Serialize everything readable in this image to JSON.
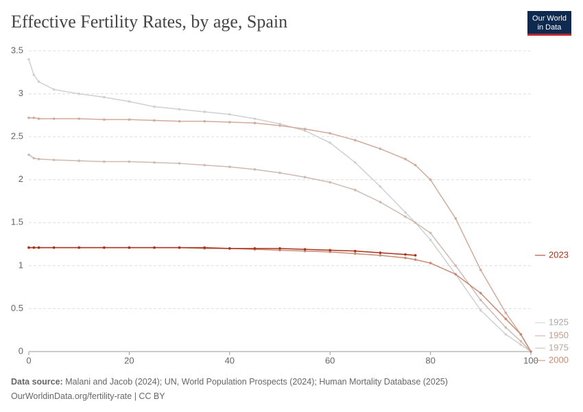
{
  "chart_data": {
    "type": "line",
    "title": "Effective Fertility Rates, by age, Spain",
    "logo": [
      "Our World",
      "in Data"
    ],
    "source_label": "Data source:",
    "source": "Malani and Jacob (2024); UN, World Population Prospects (2024); Human Mortality Database (2025)",
    "url": "OurWorldinData.org/fertility-rate | CC BY",
    "x": [
      0,
      1,
      2,
      5,
      10,
      15,
      20,
      25,
      30,
      35,
      40,
      45,
      50,
      55,
      60,
      65,
      70,
      75,
      77,
      80,
      85,
      90,
      95,
      98,
      100
    ],
    "xlim": [
      0,
      100
    ],
    "xticks": [
      0,
      20,
      40,
      60,
      80,
      100
    ],
    "ylim": [
      0,
      3.5
    ],
    "yticks": [
      0,
      0.5,
      1,
      1.5,
      2,
      2.5,
      3,
      3.5
    ],
    "grid": true,
    "series": [
      {
        "name": "1925",
        "color": "#d0d0d0",
        "label_color": "#a8a8a8",
        "values": [
          3.4,
          3.22,
          3.14,
          3.05,
          3.0,
          2.96,
          2.91,
          2.85,
          2.82,
          2.79,
          2.76,
          2.71,
          2.65,
          2.57,
          2.43,
          2.2,
          1.92,
          1.62,
          1.5,
          1.3,
          0.9,
          0.48,
          0.2,
          0.08,
          0
        ]
      },
      {
        "name": "1950",
        "color": "#d2aa9c",
        "label_color": "#c09a8c",
        "values": [
          2.72,
          2.72,
          2.71,
          2.71,
          2.71,
          2.7,
          2.7,
          2.69,
          2.68,
          2.68,
          2.67,
          2.66,
          2.63,
          2.59,
          2.54,
          2.46,
          2.36,
          2.24,
          2.17,
          2.0,
          1.55,
          0.95,
          0.45,
          0.2,
          0
        ]
      },
      {
        "name": "1975",
        "color": "#cdbab2",
        "label_color": "#b8a59c",
        "values": [
          2.29,
          2.25,
          2.24,
          2.23,
          2.22,
          2.21,
          2.21,
          2.2,
          2.19,
          2.17,
          2.15,
          2.12,
          2.08,
          2.03,
          1.97,
          1.88,
          1.74,
          1.57,
          1.5,
          1.38,
          1.0,
          0.6,
          0.28,
          0.12,
          0
        ]
      },
      {
        "name": "2000",
        "color": "#c98a73",
        "label_color": "#c98a73",
        "values": [
          1.21,
          1.21,
          1.21,
          1.21,
          1.21,
          1.21,
          1.21,
          1.21,
          1.21,
          1.2,
          1.2,
          1.19,
          1.18,
          1.17,
          1.16,
          1.14,
          1.12,
          1.09,
          1.07,
          1.03,
          0.9,
          0.68,
          0.38,
          0.2,
          0
        ]
      },
      {
        "name": "2023",
        "color": "#a8331a",
        "label_color": "#a8331a",
        "values": [
          1.21,
          1.21,
          1.21,
          1.21,
          1.21,
          1.21,
          1.21,
          1.21,
          1.21,
          1.21,
          1.2,
          1.2,
          1.2,
          1.19,
          1.18,
          1.17,
          1.15,
          1.13,
          1.12,
          null,
          null,
          null,
          null,
          null,
          null
        ]
      }
    ]
  }
}
